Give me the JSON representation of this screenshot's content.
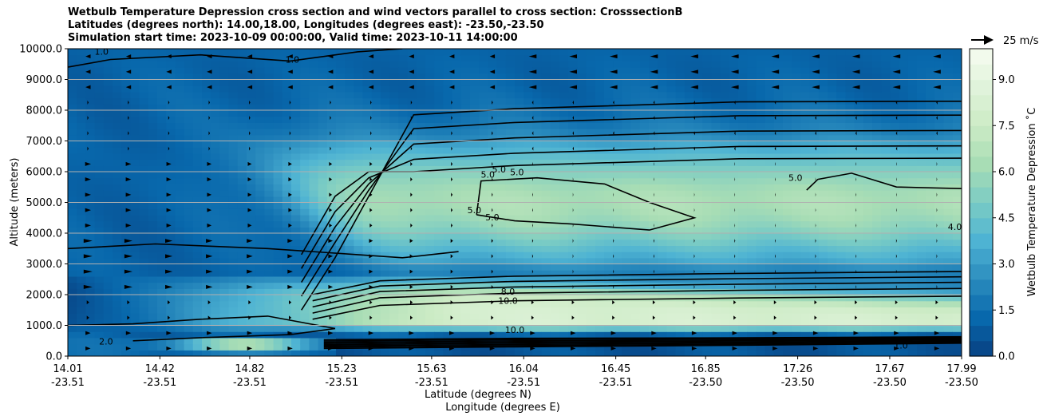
{
  "chart_data": {
    "type": "heatmap",
    "title_lines": [
      "Wetbulb Temperature Depression cross section and wind vectors parallel to cross section: CrosssectionB",
      "Latitudes (degrees north): 14.00,18.00, Longitudes (degrees east): -23.50,-23.50",
      "Simulation start time: 2023-10-09 00:00:00, Valid time: 2023-10-11 14:00:00"
    ],
    "ylabel": "Altitude (meters)",
    "xlabel_lines": [
      "Latitude (degrees N)",
      "Longitude (degrees E)"
    ],
    "ylim": [
      0,
      10000
    ],
    "y_ticks": [
      {
        "value": 0,
        "label": "0.0"
      },
      {
        "value": 1000,
        "label": "1000.0"
      },
      {
        "value": 2000,
        "label": "2000.0"
      },
      {
        "value": 3000,
        "label": "3000.0"
      },
      {
        "value": 4000,
        "label": "4000.0"
      },
      {
        "value": 5000,
        "label": "5000.0"
      },
      {
        "value": 6000,
        "label": "6000.0"
      },
      {
        "value": 7000,
        "label": "7000.0"
      },
      {
        "value": 8000,
        "label": "8000.0"
      },
      {
        "value": 9000,
        "label": "9000.0"
      },
      {
        "value": 10000,
        "label": "10000.0"
      }
    ],
    "xlim": [
      14.01,
      17.99
    ],
    "x_ticks": [
      {
        "lat": 14.01,
        "lat_label": "14.01",
        "lon_label": "-23.51"
      },
      {
        "lat": 14.42,
        "lat_label": "14.42",
        "lon_label": "-23.51"
      },
      {
        "lat": 14.82,
        "lat_label": "14.82",
        "lon_label": "-23.51"
      },
      {
        "lat": 15.23,
        "lat_label": "15.23",
        "lon_label": "-23.51"
      },
      {
        "lat": 15.63,
        "lat_label": "15.63",
        "lon_label": "-23.51"
      },
      {
        "lat": 16.04,
        "lat_label": "16.04",
        "lon_label": "-23.51"
      },
      {
        "lat": 16.45,
        "lat_label": "16.45",
        "lon_label": "-23.51"
      },
      {
        "lat": 16.85,
        "lat_label": "16.85",
        "lon_label": "-23.50"
      },
      {
        "lat": 17.26,
        "lat_label": "17.26",
        "lon_label": "-23.50"
      },
      {
        "lat": 17.67,
        "lat_label": "17.67",
        "lon_label": "-23.50"
      },
      {
        "lat": 17.99,
        "lat_label": "17.99",
        "lon_label": "-23.50"
      }
    ],
    "grid": "horizontal",
    "colorbar": {
      "label": "Wetbulb Temperature Depression ˚C",
      "range": [
        0,
        10
      ],
      "ticks": [
        {
          "value": 0,
          "label": "0.0"
        },
        {
          "value": 1.5,
          "label": "1.5"
        },
        {
          "value": 3.0,
          "label": "3.0"
        },
        {
          "value": 4.5,
          "label": "4.5"
        },
        {
          "value": 6.0,
          "label": "6.0"
        },
        {
          "value": 7.5,
          "label": "7.5"
        },
        {
          "value": 9.0,
          "label": "9.0"
        }
      ],
      "colormap": "GnBu_r",
      "colors": [
        "#084081",
        "#0868ac",
        "#2b8cbe",
        "#4eb3d3",
        "#7bccc4",
        "#a8ddb5",
        "#ccebc5",
        "#e0f3db",
        "#f7fcf0"
      ]
    },
    "wind_key_label": "25 m/s",
    "contour_labels": [
      {
        "text": "1.0",
        "lat": 14.16,
        "alt": 9800
      },
      {
        "text": "1.0",
        "lat": 15.01,
        "alt": 9550
      },
      {
        "text": "5.0",
        "lat": 15.88,
        "alt": 5800
      },
      {
        "text": "5.0",
        "lat": 15.93,
        "alt": 5970
      },
      {
        "text": "5.0",
        "lat": 16.01,
        "alt": 5880
      },
      {
        "text": "5.0",
        "lat": 15.82,
        "alt": 4650
      },
      {
        "text": "5.0",
        "lat": 15.9,
        "alt": 4420
      },
      {
        "text": "5.0",
        "lat": 17.25,
        "alt": 5700
      },
      {
        "text": "4.0",
        "lat": 17.96,
        "alt": 4100
      },
      {
        "text": "8.0",
        "lat": 15.97,
        "alt": 2000
      },
      {
        "text": "10.0",
        "lat": 15.97,
        "alt": 1700
      },
      {
        "text": "10.0",
        "lat": 16.0,
        "alt": 750
      },
      {
        "text": "2.0",
        "lat": 14.18,
        "alt": 380
      },
      {
        "text": "1.0",
        "lat": 17.72,
        "alt": 250
      }
    ],
    "note": "Filled contour field of wetbulb temperature depression with black contour lines and wind vectors."
  }
}
